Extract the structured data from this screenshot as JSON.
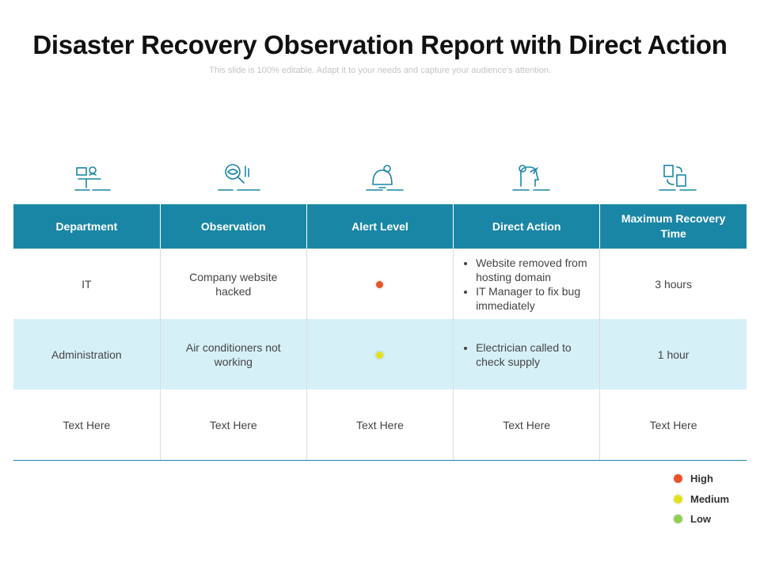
{
  "title": "Disaster Recovery Observation Report with Direct Action",
  "subtitle": "This slide is 100% editable. Adapt it to your needs and capture your audience's attention.",
  "table": {
    "headers": [
      "Department",
      "Observation",
      "Alert Level",
      "Direct Action",
      "Maximum Recovery Time"
    ],
    "rows": [
      [
        "IT",
        "Company website hacked",
        {
          "level": "High"
        },
        [
          "Website removed from hosting domain",
          "IT Manager to fix bug immediately"
        ],
        "3 hours"
      ],
      [
        "Administration",
        "Air conditioners not working",
        {
          "level": "Medium"
        },
        [
          "Electrician called to check supply"
        ],
        "1 hour"
      ],
      [
        "Text Here",
        "Text Here",
        "Text Here",
        "Text Here",
        "Text Here"
      ]
    ]
  },
  "legend": [
    {
      "name": "High",
      "color": "#e8532a"
    },
    {
      "name": "Medium",
      "color": "#e6e01c"
    },
    {
      "name": "Low",
      "color": "#8fd14f"
    }
  ]
}
